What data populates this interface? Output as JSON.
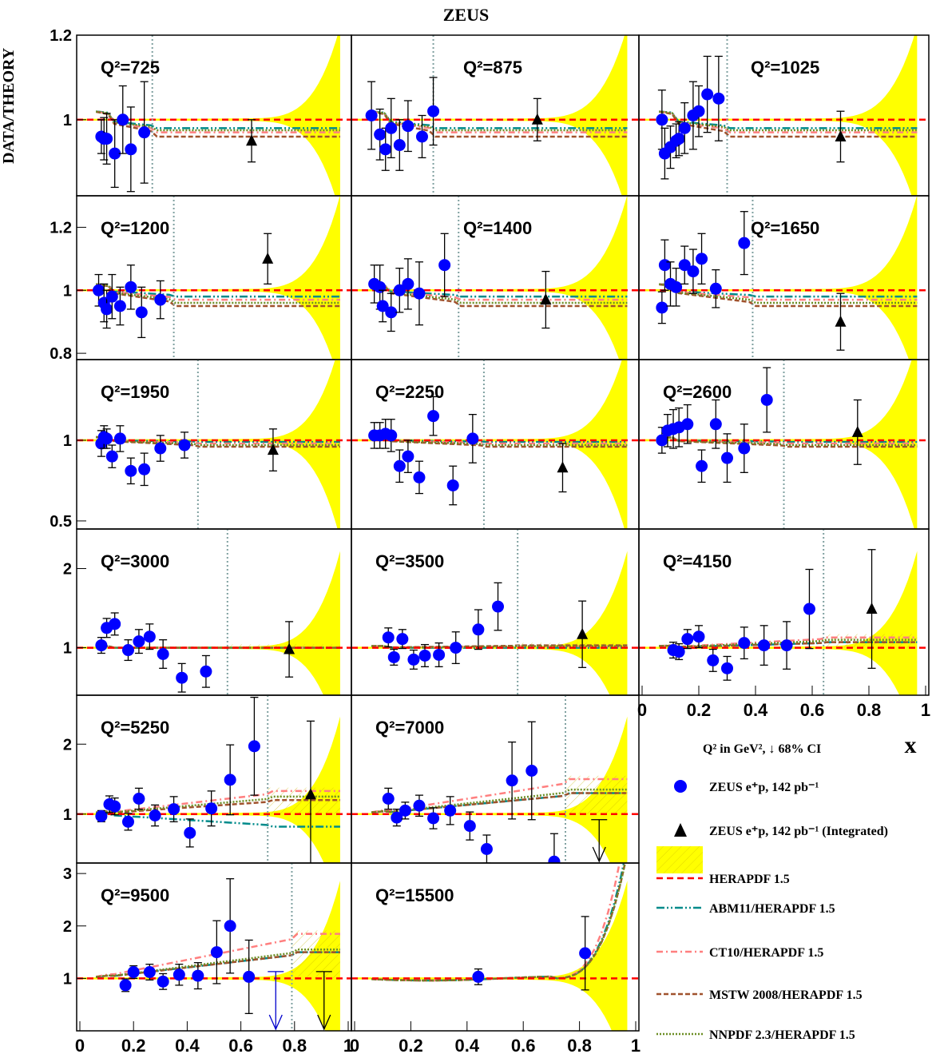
{
  "title": "ZEUS",
  "ylabel": "DATA/THEORY",
  "chart_data": {
    "type": "scatter",
    "title": "ZEUS",
    "ylabel": "DATA/THEORY",
    "xlabel": "x",
    "xlim": [
      0,
      1
    ],
    "x_ticks": [
      "0",
      "0.2",
      "0.4",
      "0.6",
      "0.8",
      "1"
    ],
    "panels": [
      {
        "q2_label": "Q²=725",
        "ylim": [
          0.82,
          1.2
        ],
        "yticks": [
          [
            "1",
            "1"
          ],
          [
            "1.2",
            "1.2"
          ]
        ],
        "xcut": 0.27,
        "curves": {
          "abm": 0.98,
          "ct": 0.97,
          "mstw": 0.96,
          "nnpdf": 0.975
        },
        "points": [
          [
            0.08,
            0.96,
            0.04
          ],
          [
            0.09,
            0.955,
            0.05
          ],
          [
            0.1,
            0.955,
            0.06
          ],
          [
            0.13,
            0.92,
            0.08
          ],
          [
            0.16,
            1.0,
            0.08
          ],
          [
            0.19,
            0.93,
            0.1
          ],
          [
            0.24,
            0.97,
            0.12
          ]
        ],
        "integrated": [
          [
            0.64,
            0.95,
            0.05
          ]
        ]
      },
      {
        "q2_label": "Q²=875",
        "ylim": [
          0.82,
          1.2
        ],
        "yticks": [],
        "xcut": 0.28,
        "curves": {
          "abm": 0.98,
          "ct": 0.97,
          "mstw": 0.96,
          "nnpdf": 0.975
        },
        "points": [
          [
            0.06,
            1.01,
            0.08
          ],
          [
            0.09,
            0.965,
            0.06
          ],
          [
            0.11,
            0.93,
            0.05
          ],
          [
            0.13,
            0.98,
            0.07
          ],
          [
            0.16,
            0.94,
            0.06
          ],
          [
            0.19,
            0.985,
            0.06
          ],
          [
            0.24,
            0.96,
            0.05
          ],
          [
            0.28,
            1.02,
            0.08
          ]
        ],
        "integrated": [
          [
            0.65,
            1.0,
            0.05
          ]
        ]
      },
      {
        "q2_label": "Q²=1025",
        "ylim": [
          0.82,
          1.2
        ],
        "yticks": [],
        "xcut": 0.3,
        "curves": {
          "abm": 0.98,
          "ct": 0.97,
          "mstw": 0.96,
          "nnpdf": 0.975
        },
        "points": [
          [
            0.07,
            1.0,
            0.07
          ],
          [
            0.08,
            0.92,
            0.06
          ],
          [
            0.1,
            0.935,
            0.05
          ],
          [
            0.12,
            0.95,
            0.04
          ],
          [
            0.13,
            0.955,
            0.04
          ],
          [
            0.15,
            0.98,
            0.06
          ],
          [
            0.18,
            1.01,
            0.08
          ],
          [
            0.2,
            1.02,
            0.06
          ],
          [
            0.23,
            1.06,
            0.09
          ],
          [
            0.27,
            1.05,
            0.1
          ]
        ],
        "integrated": [
          [
            0.7,
            0.96,
            0.06
          ]
        ]
      },
      {
        "q2_label": "Q²=1200",
        "ylim": [
          0.78,
          1.3
        ],
        "yticks": [
          [
            "0.8",
            "0.8"
          ],
          [
            "1",
            "1"
          ],
          [
            "1.2",
            "1.2"
          ]
        ],
        "xcut": 0.35,
        "curves": {
          "abm": 0.98,
          "ct": 0.97,
          "mstw": 0.95,
          "nnpdf": 0.96
        },
        "points": [
          [
            0.07,
            1.0,
            0.05
          ],
          [
            0.09,
            0.96,
            0.06
          ],
          [
            0.1,
            0.94,
            0.06
          ],
          [
            0.12,
            0.98,
            0.07
          ],
          [
            0.15,
            0.95,
            0.06
          ],
          [
            0.19,
            1.01,
            0.07
          ],
          [
            0.23,
            0.93,
            0.08
          ],
          [
            0.3,
            0.97,
            0.06
          ]
        ],
        "integrated": [
          [
            0.7,
            1.1,
            0.08
          ]
        ]
      },
      {
        "q2_label": "Q²=1400",
        "ylim": [
          0.78,
          1.3
        ],
        "yticks": [],
        "xcut": 0.37,
        "curves": {
          "abm": 0.98,
          "ct": 0.97,
          "mstw": 0.95,
          "nnpdf": 0.96
        },
        "points": [
          [
            0.07,
            1.02,
            0.06
          ],
          [
            0.09,
            1.01,
            0.07
          ],
          [
            0.1,
            0.95,
            0.05
          ],
          [
            0.13,
            0.93,
            0.06
          ],
          [
            0.16,
            1.0,
            0.07
          ],
          [
            0.19,
            1.02,
            0.08
          ],
          [
            0.23,
            0.99,
            0.1
          ],
          [
            0.32,
            1.08,
            0.1
          ]
        ],
        "integrated": [
          [
            0.68,
            0.97,
            0.09
          ]
        ]
      },
      {
        "q2_label": "Q²=1650",
        "ylim": [
          0.78,
          1.3
        ],
        "yticks": [],
        "xcut": 0.39,
        "curves": {
          "abm": 0.98,
          "ct": 0.97,
          "mstw": 0.95,
          "nnpdf": 0.96
        },
        "points": [
          [
            0.07,
            0.945,
            0.05
          ],
          [
            0.08,
            1.08,
            0.08
          ],
          [
            0.1,
            1.02,
            0.07
          ],
          [
            0.12,
            1.01,
            0.06
          ],
          [
            0.15,
            1.08,
            0.06
          ],
          [
            0.18,
            1.06,
            0.07
          ],
          [
            0.21,
            1.1,
            0.08
          ],
          [
            0.26,
            1.005,
            0.06
          ],
          [
            0.36,
            1.15,
            0.1
          ]
        ],
        "integrated": [
          [
            0.7,
            0.9,
            0.09
          ]
        ]
      },
      {
        "q2_label": "Q²=1950",
        "ylim": [
          0.45,
          1.5
        ],
        "yticks": [
          [
            "0.5",
            "0.5"
          ],
          [
            "1",
            "1"
          ]
        ],
        "xcut": 0.44,
        "curves": {
          "abm": 0.99,
          "ct": 0.98,
          "mstw": 0.96,
          "nnpdf": 0.97
        },
        "points": [
          [
            0.08,
            0.98,
            0.08
          ],
          [
            0.09,
            1.02,
            0.07
          ],
          [
            0.1,
            1.01,
            0.06
          ],
          [
            0.12,
            0.9,
            0.07
          ],
          [
            0.15,
            1.01,
            0.08
          ],
          [
            0.19,
            0.81,
            0.08
          ],
          [
            0.24,
            0.82,
            0.1
          ],
          [
            0.3,
            0.95,
            0.08
          ],
          [
            0.39,
            0.97,
            0.08
          ]
        ],
        "integrated": [
          [
            0.72,
            0.94,
            0.13
          ]
        ]
      },
      {
        "q2_label": "Q²=2250",
        "ylim": [
          0.45,
          1.5
        ],
        "yticks": [],
        "xcut": 0.46,
        "curves": {
          "abm": 0.99,
          "ct": 0.98,
          "mstw": 0.96,
          "nnpdf": 0.97
        },
        "points": [
          [
            0.07,
            1.03,
            0.08
          ],
          [
            0.09,
            1.03,
            0.08
          ],
          [
            0.11,
            1.04,
            0.09
          ],
          [
            0.13,
            1.03,
            0.1
          ],
          [
            0.16,
            0.84,
            0.1
          ],
          [
            0.19,
            0.9,
            0.1
          ],
          [
            0.23,
            0.77,
            0.1
          ],
          [
            0.28,
            1.15,
            0.12
          ],
          [
            0.35,
            0.72,
            0.12
          ],
          [
            0.42,
            1.01,
            0.15
          ]
        ],
        "integrated": [
          [
            0.74,
            0.83,
            0.15
          ]
        ]
      },
      {
        "q2_label": "Q²=2600",
        "ylim": [
          0.45,
          1.5
        ],
        "yticks": [],
        "xcut": 0.5,
        "curves": {
          "abm": 0.99,
          "ct": 0.98,
          "mstw": 0.96,
          "nnpdf": 0.97
        },
        "points": [
          [
            0.07,
            1.0,
            0.08
          ],
          [
            0.09,
            1.06,
            0.1
          ],
          [
            0.11,
            1.07,
            0.12
          ],
          [
            0.13,
            1.08,
            0.12
          ],
          [
            0.16,
            1.1,
            0.12
          ],
          [
            0.21,
            0.84,
            0.1
          ],
          [
            0.26,
            1.1,
            0.15
          ],
          [
            0.3,
            0.89,
            0.15
          ],
          [
            0.36,
            0.95,
            0.15
          ],
          [
            0.44,
            1.25,
            0.2
          ]
        ],
        "integrated": [
          [
            0.76,
            1.05,
            0.2
          ]
        ]
      },
      {
        "q2_label": "Q²=3000",
        "ylim": [
          0.4,
          2.5
        ],
        "yticks": [
          [
            "1",
            "1"
          ],
          [
            "2",
            "2"
          ]
        ],
        "xcut": 0.55,
        "curves": {
          "abm": 1.0,
          "ct": 1.0,
          "mstw": 1.0,
          "nnpdf": 1.0
        },
        "points": [
          [
            0.08,
            1.03,
            0.1
          ],
          [
            0.1,
            1.25,
            0.12
          ],
          [
            0.13,
            1.3,
            0.14
          ],
          [
            0.18,
            0.97,
            0.13
          ],
          [
            0.22,
            1.08,
            0.15
          ],
          [
            0.26,
            1.14,
            0.16
          ],
          [
            0.31,
            0.92,
            0.18
          ],
          [
            0.38,
            0.62,
            0.18
          ],
          [
            0.47,
            0.7,
            0.2
          ]
        ],
        "integrated": [
          [
            0.78,
            0.98,
            0.35
          ]
        ]
      },
      {
        "q2_label": "Q²=3500",
        "ylim": [
          0.4,
          2.5
        ],
        "yticks": [],
        "xcut": 0.58,
        "curves": {
          "abm": 1.0,
          "ct": 1.02,
          "mstw": 1.03,
          "nnpdf": 1.02
        },
        "points": [
          [
            0.12,
            1.13,
            0.12
          ],
          [
            0.14,
            0.88,
            0.1
          ],
          [
            0.17,
            1.11,
            0.12
          ],
          [
            0.21,
            0.85,
            0.12
          ],
          [
            0.25,
            0.9,
            0.14
          ],
          [
            0.3,
            0.91,
            0.15
          ],
          [
            0.36,
            1.0,
            0.2
          ],
          [
            0.44,
            1.23,
            0.25
          ],
          [
            0.51,
            1.52,
            0.3
          ]
        ],
        "integrated": [
          [
            0.81,
            1.17,
            0.42
          ]
        ]
      },
      {
        "q2_label": "Q²=4150",
        "ylim": [
          0.4,
          2.5
        ],
        "yticks": [],
        "xcut": 0.64,
        "curves": {
          "abm": 1.07,
          "ct": 1.13,
          "mstw": 1.07,
          "nnpdf": 1.1
        },
        "points": [
          [
            0.11,
            0.97,
            0.1
          ],
          [
            0.13,
            0.95,
            0.1
          ],
          [
            0.16,
            1.11,
            0.12
          ],
          [
            0.2,
            1.14,
            0.14
          ],
          [
            0.25,
            0.84,
            0.14
          ],
          [
            0.3,
            0.74,
            0.15
          ],
          [
            0.36,
            1.06,
            0.2
          ],
          [
            0.43,
            1.03,
            0.25
          ],
          [
            0.51,
            1.03,
            0.3
          ],
          [
            0.59,
            1.49,
            0.5
          ]
        ],
        "integrated": [
          [
            0.81,
            1.49,
            0.75
          ]
        ]
      },
      {
        "q2_label": "Q²=5250",
        "ylim": [
          0.3,
          2.7
        ],
        "yticks": [
          [
            "1",
            "1"
          ],
          [
            "2",
            "2"
          ]
        ],
        "xcut": 0.7,
        "curves": {
          "abm": 0.82,
          "ct": 1.33,
          "mstw": 1.2,
          "nnpdf": 1.25
        },
        "points": [
          [
            0.08,
            0.97,
            0.08
          ],
          [
            0.11,
            1.14,
            0.12
          ],
          [
            0.13,
            1.11,
            0.12
          ],
          [
            0.18,
            0.89,
            0.12
          ],
          [
            0.22,
            1.22,
            0.15
          ],
          [
            0.28,
            0.98,
            0.15
          ],
          [
            0.35,
            1.07,
            0.18
          ],
          [
            0.41,
            0.73,
            0.2
          ],
          [
            0.49,
            1.08,
            0.25
          ],
          [
            0.56,
            1.49,
            0.5
          ],
          [
            0.65,
            1.97,
            0.7
          ]
        ],
        "integrated": [
          [
            0.86,
            1.28,
            1.05
          ]
        ]
      },
      {
        "q2_label": "Q²=7000",
        "ylim": [
          0.3,
          2.7
        ],
        "yticks": [],
        "xcut": 0.75,
        "curves": {
          "abm": 1.3,
          "ct": 1.5,
          "mstw": 1.3,
          "nnpdf": 1.35
        },
        "points": [
          [
            0.12,
            1.22,
            0.15
          ],
          [
            0.15,
            0.95,
            0.12
          ],
          [
            0.18,
            1.05,
            0.12
          ],
          [
            0.23,
            1.12,
            0.15
          ],
          [
            0.28,
            0.94,
            0.15
          ],
          [
            0.34,
            1.05,
            0.2
          ],
          [
            0.41,
            0.83,
            0.2
          ],
          [
            0.47,
            0.5,
            0.2
          ],
          [
            0.56,
            1.48,
            0.55
          ],
          [
            0.63,
            1.62,
            0.7
          ],
          [
            0.71,
            0.32,
            0.4
          ]
        ],
        "integrated": [],
        "arrows": [
          [
            0.87,
            0.92
          ]
        ]
      },
      null,
      {
        "q2_label": "Q²=9500",
        "ylim": [
          0.0,
          3.2
        ],
        "yticks": [
          [
            "1",
            "1"
          ],
          [
            "2",
            "2"
          ],
          [
            "3",
            "3"
          ]
        ],
        "xcut": 0.79,
        "curves": {
          "abm": 1.5,
          "ct": 1.85,
          "mstw": 1.5,
          "nnpdf": 1.55
        },
        "points": [
          [
            0.17,
            0.87,
            0.12
          ],
          [
            0.2,
            1.12,
            0.12
          ],
          [
            0.26,
            1.12,
            0.15
          ],
          [
            0.31,
            0.94,
            0.15
          ],
          [
            0.37,
            1.07,
            0.2
          ],
          [
            0.44,
            1.05,
            0.25
          ],
          [
            0.51,
            1.5,
            0.6
          ],
          [
            0.56,
            2.0,
            0.9
          ],
          [
            0.63,
            1.03,
            0.7
          ]
        ],
        "integrated": [],
        "arrows": [
          [
            0.73,
            1.13
          ],
          [
            0.91,
            1.13
          ]
        ]
      },
      {
        "q2_label": "Q²=15500",
        "ylim": [
          0.0,
          3.2
        ],
        "yticks": [],
        "xcut": null,
        "curves": {
          "abm": 1.0,
          "ct": 1.0,
          "mstw": 1.0,
          "nnpdf": 1.0
        },
        "points": [
          [
            0.44,
            1.03,
            0.15
          ],
          [
            0.82,
            1.48,
            0.7
          ]
        ],
        "integrated": [],
        "arrows": []
      },
      null
    ],
    "legend": {
      "caption": "Q² in GeV², ↓ 68% CI",
      "entries": [
        {
          "marker": "circle",
          "label": "ZEUS e⁺p, 142 pb⁻¹"
        },
        {
          "marker": "triangle",
          "label": "ZEUS e⁺p, 142 pb⁻¹ (Integrated)"
        },
        {
          "marker": "band",
          "label": "HERAPDF 1.5"
        },
        {
          "marker": "abm",
          "label": "ABM11/HERAPDF 1.5"
        },
        {
          "marker": "ct",
          "label": "CT10/HERAPDF 1.5"
        },
        {
          "marker": "mstw",
          "label": "MSTW 2008/HERAPDF 1.5"
        },
        {
          "marker": "nnpdf",
          "label": "NNPDF 2.3/HERAPDF 1.5"
        }
      ]
    },
    "colors": {
      "band": "#ffff00",
      "hera": "#ff0000",
      "abm": "#008b8b",
      "ct": "#ff7f7f",
      "mstw": "#a0522d",
      "nnpdf": "#6b8e23",
      "points": "#0000ff",
      "xcut": "#7fa0a0"
    }
  }
}
